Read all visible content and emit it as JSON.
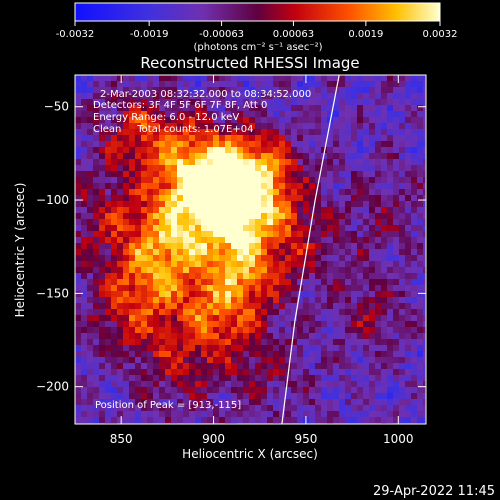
{
  "chart_data": {
    "type": "heatmap",
    "title": "Reconstructed RHESSI Image",
    "xlabel": "Heliocentric X (arcsec)",
    "ylabel": "Heliocentric Y (arcsec)",
    "xlim": [
      825,
      1015
    ],
    "ylim": [
      -220,
      -33
    ],
    "x_ticks": [
      850,
      900,
      950,
      1000
    ],
    "y_ticks": [
      -50,
      -100,
      -150,
      -200
    ],
    "colorbar": {
      "ticks": [
        "-0.0032",
        "-0.0019",
        "-0.00063",
        "0.00063",
        "0.0019",
        "0.0032"
      ],
      "unit_label": "(photons cm⁻² s⁻¹ asec⁻²)",
      "range": [
        -0.0032,
        0.0032
      ]
    },
    "annotations": {
      "time": "2-Mar-2003 08:32:32.000 to 08:34:52.000",
      "detectors": "Detectors: 3F 4F 5F 6F 7F 8F, Att 0",
      "energy": "Energy Range: 6.0 - 12.0 keV",
      "clean": "Clean     Total counts: 1.07E+04",
      "peak": "Position of Peak = [913,-115]"
    },
    "limb_curve": [
      [
        968,
        -33
      ],
      [
        955,
        -100
      ],
      [
        944,
        -165
      ],
      [
        937,
        -220
      ]
    ],
    "sources": [
      {
        "x": 910,
        "y": -105,
        "amp": 1.0
      },
      {
        "x": 893,
        "y": -82,
        "amp": 0.8
      },
      {
        "x": 925,
        "y": -85,
        "amp": 0.7
      },
      {
        "x": 915,
        "y": -140,
        "amp": 0.65
      },
      {
        "x": 870,
        "y": -135,
        "amp": 0.6
      },
      {
        "x": 880,
        "y": -110,
        "amp": 0.55
      },
      {
        "x": 860,
        "y": -65,
        "amp": 0.5
      },
      {
        "x": 855,
        "y": -160,
        "amp": 0.45
      },
      {
        "x": 900,
        "y": -165,
        "amp": 0.5
      },
      {
        "x": 945,
        "y": -120,
        "amp": 0.35
      },
      {
        "x": 840,
        "y": -110,
        "amp": 0.35
      },
      {
        "x": 880,
        "y": -190,
        "amp": 0.3
      },
      {
        "x": 930,
        "y": -190,
        "amp": 0.25
      },
      {
        "x": 985,
        "y": -160,
        "amp": 0.25
      },
      {
        "x": 990,
        "y": -105,
        "amp": 0.2
      }
    ]
  },
  "footer": {
    "timestamp": "29-Apr-2022 11:45"
  }
}
